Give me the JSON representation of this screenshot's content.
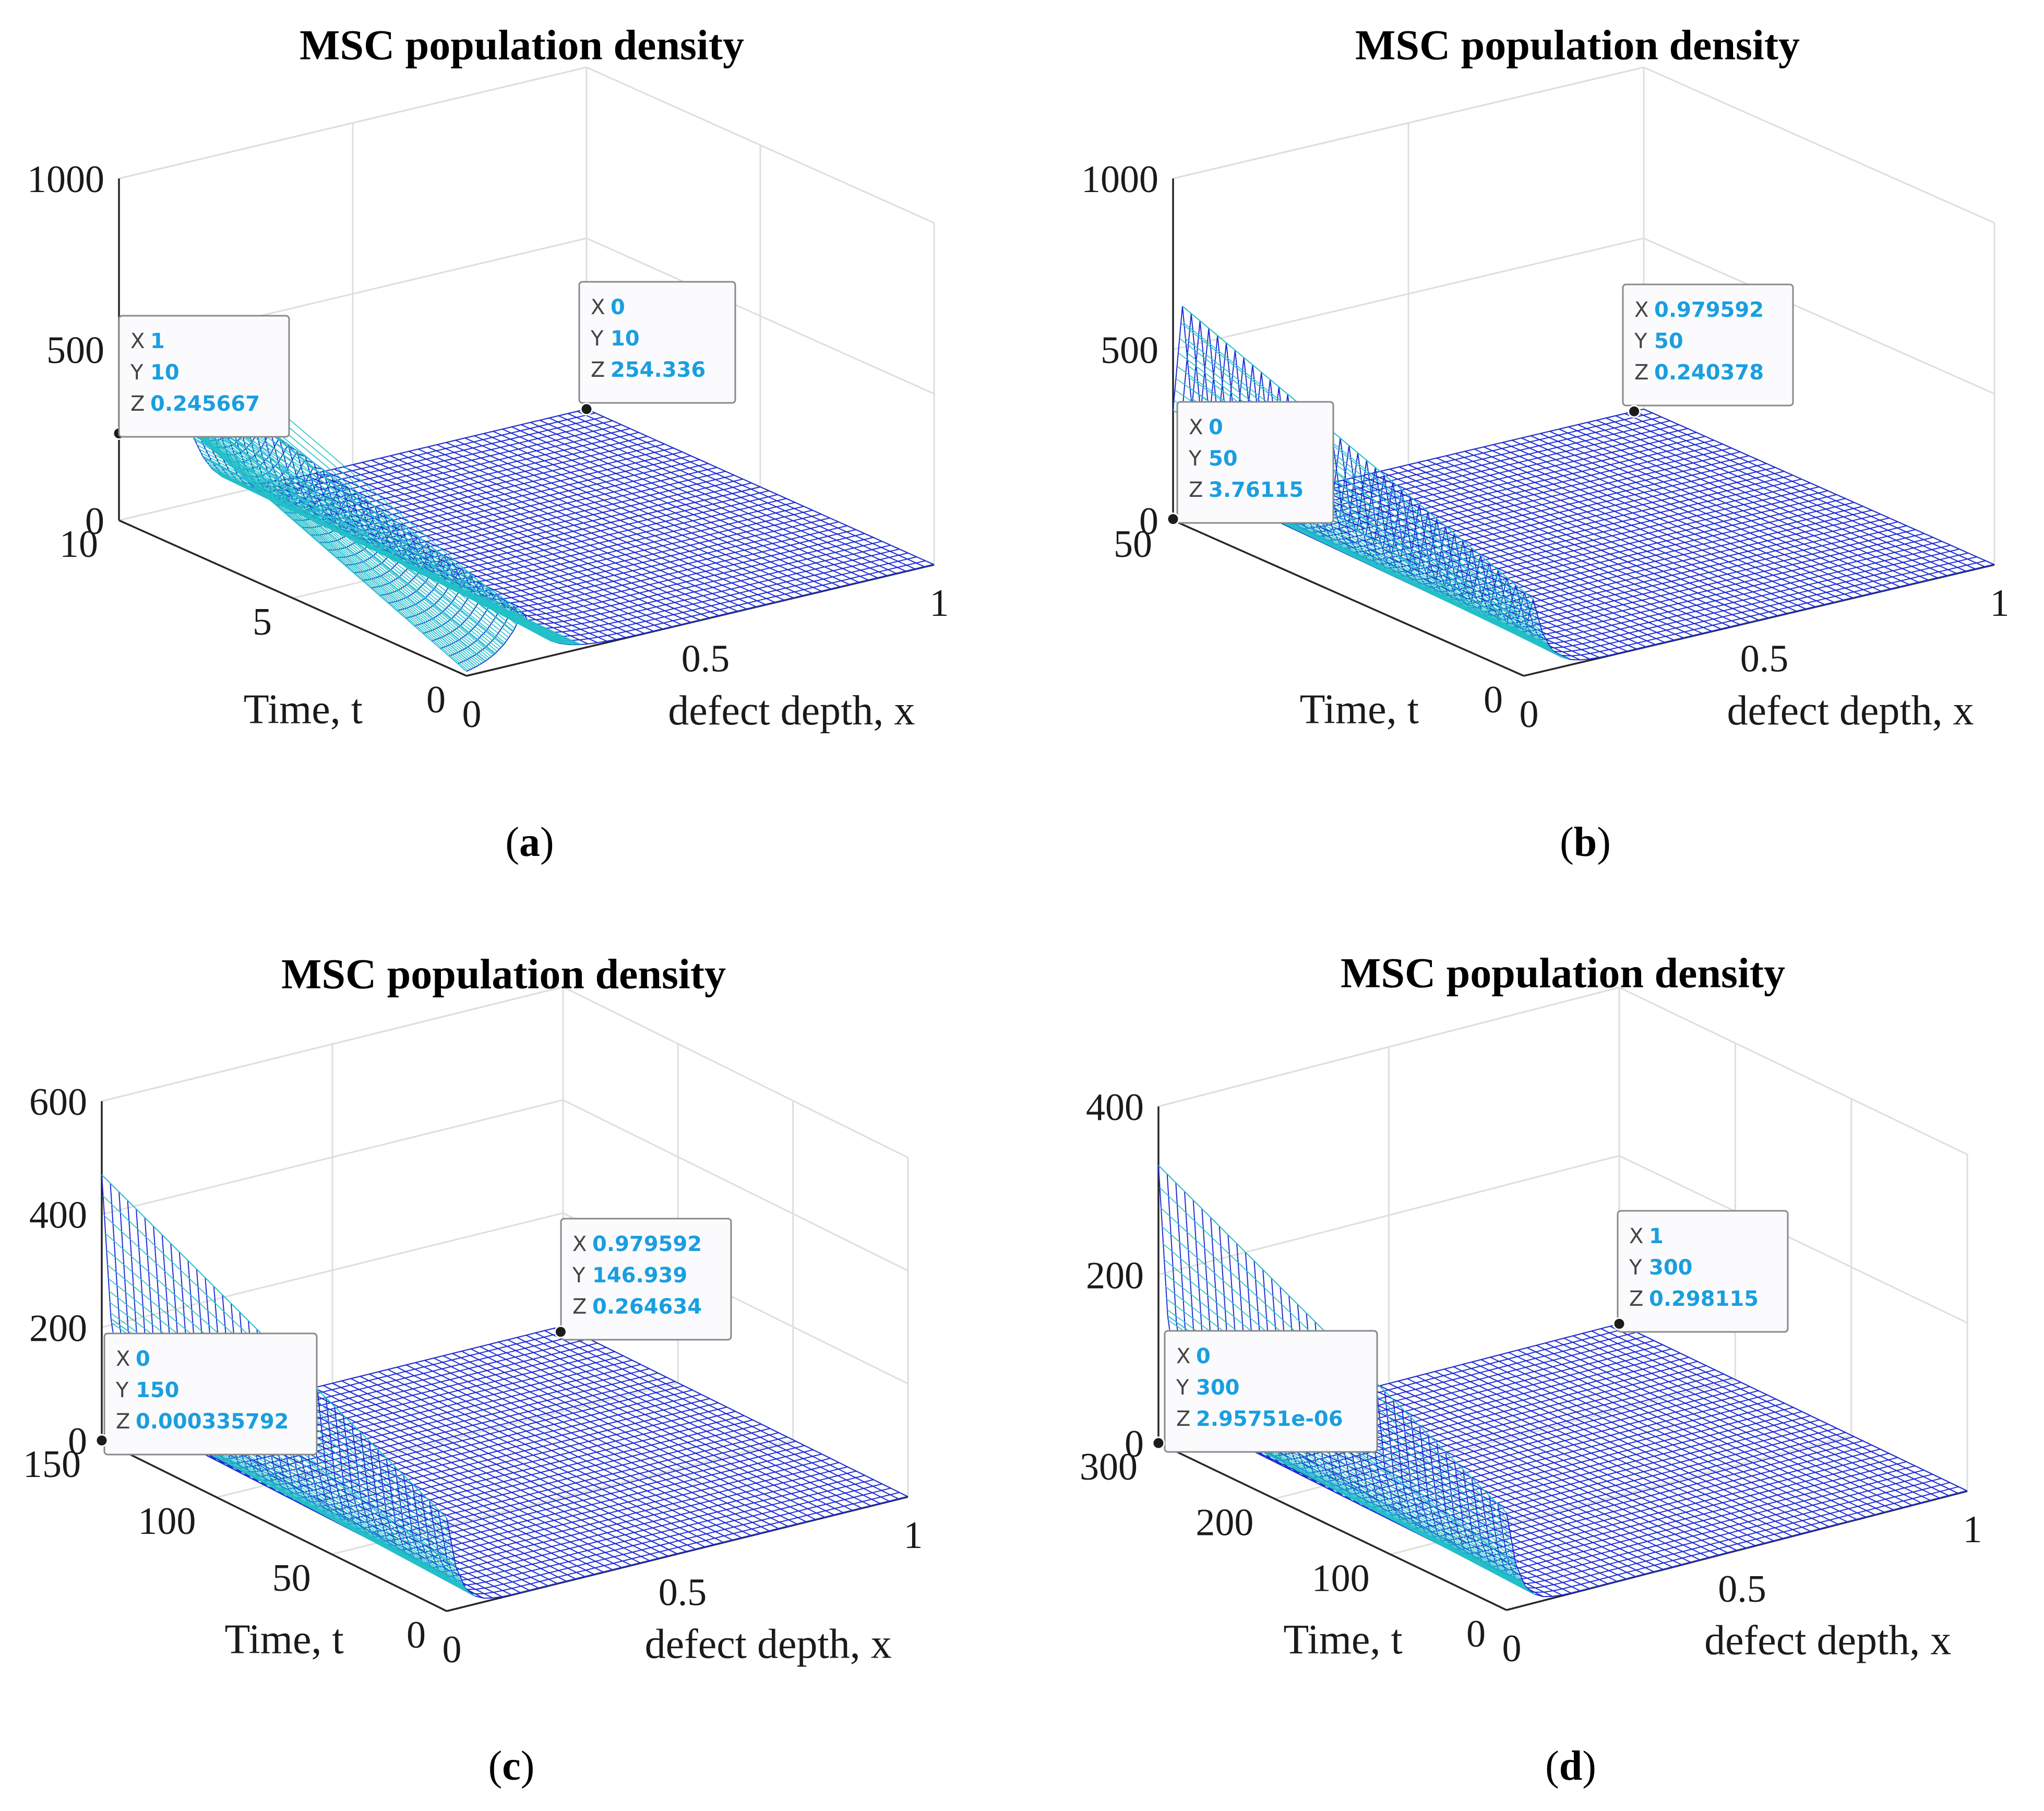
{
  "figure_labels": [
    "a",
    "b",
    "c",
    "d"
  ],
  "chart_data": [
    {
      "type": "surface",
      "label": "a",
      "title": "MSC population density",
      "xlabel": "defect depth, x",
      "ylabel": "Time, t",
      "xlim": [
        0,
        1
      ],
      "ylim": [
        0,
        10
      ],
      "zlim": [
        0,
        1000
      ],
      "xticks": [
        0,
        0.5,
        1
      ],
      "xtick_labels": [
        "0",
        "0.5",
        "1"
      ],
      "yticks": [
        0,
        5,
        10
      ],
      "ytick_labels": [
        "0",
        "5",
        "10"
      ],
      "zticks": [
        0,
        500,
        1000
      ],
      "ztick_labels": [
        "0",
        "500",
        "1000"
      ],
      "profile": {
        "peak_x": 0.12,
        "peak_z": 420,
        "edge_z": 254.336,
        "width": 0.05
      },
      "datatips": [
        {
          "x": 0,
          "y": 10,
          "z": 254.336,
          "x_label": "0",
          "y_label": "10",
          "z_label": "254.336"
        },
        {
          "x": 1,
          "y": 10,
          "z": 0.245667,
          "x_label": "1",
          "y_label": "10",
          "z_label": "0.245667"
        }
      ]
    },
    {
      "type": "surface",
      "label": "b",
      "title": "MSC population density",
      "xlabel": "defect depth, x",
      "ylabel": "Time, t",
      "xlim": [
        0,
        1
      ],
      "ylim": [
        0,
        50
      ],
      "zlim": [
        0,
        1000
      ],
      "xticks": [
        0,
        0.5,
        1
      ],
      "xtick_labels": [
        "0",
        "0.5",
        "1"
      ],
      "yticks": [
        0,
        50
      ],
      "ytick_labels": [
        "0",
        "50"
      ],
      "zticks": [
        0,
        500,
        1000
      ],
      "ztick_labels": [
        "0",
        "500",
        "1000"
      ],
      "profile": {
        "peak_x": 0.02,
        "peak_z": 620,
        "edge_z": 3.76115,
        "width": 0.03
      },
      "datatips": [
        {
          "x": 0.979592,
          "y": 50,
          "z": 0.240378,
          "x_label": "0.979592",
          "y_label": "50",
          "z_label": "0.240378"
        },
        {
          "x": 0,
          "y": 50,
          "z": 3.76115,
          "x_label": "0",
          "y_label": "50",
          "z_label": "3.76115"
        }
      ]
    },
    {
      "type": "surface",
      "label": "c",
      "title": "MSC population density",
      "xlabel": "defect depth, x",
      "ylabel": "Time, t",
      "xlim": [
        0,
        1
      ],
      "ylim": [
        0,
        150
      ],
      "zlim": [
        0,
        600
      ],
      "xticks": [
        0,
        0.5,
        1
      ],
      "xtick_labels": [
        "0",
        "0.5",
        "1"
      ],
      "yticks": [
        0,
        50,
        100,
        150
      ],
      "ytick_labels": [
        "0",
        "50",
        "100",
        "150"
      ],
      "zticks": [
        0,
        200,
        400,
        600
      ],
      "ztick_labels": [
        "0",
        "200",
        "400",
        "600"
      ],
      "profile": {
        "peak_x": 0.0,
        "peak_z": 470,
        "edge_z": 0.000335792,
        "width": 0.025
      },
      "datatips": [
        {
          "x": 0.979592,
          "y": 146.939,
          "z": 0.264634,
          "x_label": "0.979592",
          "y_label": "146.939",
          "z_label": "0.264634"
        },
        {
          "x": 0,
          "y": 150,
          "z": 0.000335792,
          "x_label": "0",
          "y_label": "150",
          "z_label": "0.000335792"
        }
      ]
    },
    {
      "type": "surface",
      "label": "d",
      "title": "MSC population density",
      "xlabel": "defect depth, x",
      "ylabel": "Time, t",
      "xlim": [
        0,
        1
      ],
      "ylim": [
        0,
        300
      ],
      "zlim": [
        0,
        400
      ],
      "xticks": [
        0,
        0.5,
        1
      ],
      "xtick_labels": [
        "0",
        "0.5",
        "1"
      ],
      "yticks": [
        0,
        100,
        200,
        300
      ],
      "ytick_labels": [
        "0",
        "100",
        "200",
        "300"
      ],
      "zticks": [
        0,
        200,
        400
      ],
      "ztick_labels": [
        "0",
        "200",
        "400"
      ],
      "profile": {
        "peak_x": 0.0,
        "peak_z": 330,
        "edge_z": 2.95751e-06,
        "width": 0.025
      },
      "datatips": [
        {
          "x": 1,
          "y": 300,
          "z": 0.298115,
          "x_label": "1",
          "y_label": "300",
          "z_label": "0.298115"
        },
        {
          "x": 0,
          "y": 300,
          "z": 2.95751e-06,
          "x_label": "0",
          "y_label": "300",
          "z_label": "2.95751e-06"
        }
      ]
    }
  ]
}
